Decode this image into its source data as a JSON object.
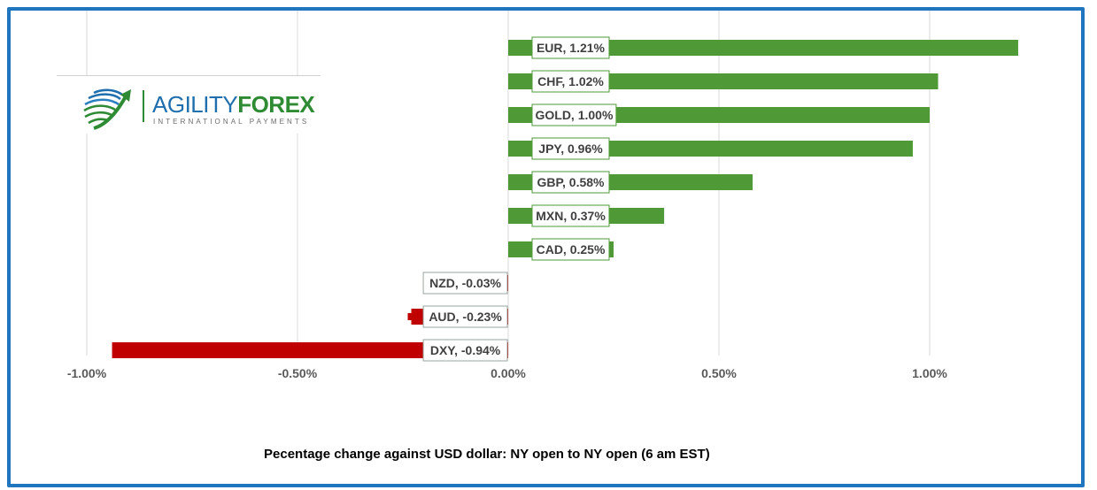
{
  "logo": {
    "word1": "AGILITY",
    "word2": "FOREX",
    "tagline": "INTERNATIONAL PAYMENTS",
    "colors": {
      "blue": "#1f6fae",
      "green": "#2e8b34"
    }
  },
  "caption": "Pecentage change against USD dollar: NY open to NY open (6 am EST)",
  "chart_data": {
    "type": "bar",
    "orientation": "horizontal",
    "categories": [
      "EUR",
      "CHF",
      "GOLD",
      "JPY",
      "GBP",
      "MXN",
      "CAD",
      "NZD",
      "AUD",
      "DXY"
    ],
    "values": [
      1.21,
      1.02,
      1.0,
      0.96,
      0.58,
      0.37,
      0.25,
      -0.03,
      -0.23,
      -0.94
    ],
    "data_labels": [
      "EUR, 1.21%",
      "CHF, 1.02%",
      "GOLD, 1.00%",
      "JPY, 0.96%",
      "GBP, 0.58%",
      "MXN, 0.37%",
      "CAD, 0.25%",
      "NZD, -0.03%",
      "AUD, -0.23%",
      "DXY, -0.94%"
    ],
    "xlim": [
      -1.0,
      1.21
    ],
    "x_ticks": [
      -1.0,
      -0.5,
      0.0,
      0.5,
      1.0
    ],
    "x_tick_labels": [
      "-1.00%",
      "-0.50%",
      "0.00%",
      "0.50%",
      "1.00%"
    ],
    "grid": "vertical",
    "legend": "none",
    "colors": {
      "positive": "#4f9a37",
      "negative": "#c00000",
      "grid": "#d9d9d9",
      "frame": "#1f76bf"
    }
  }
}
